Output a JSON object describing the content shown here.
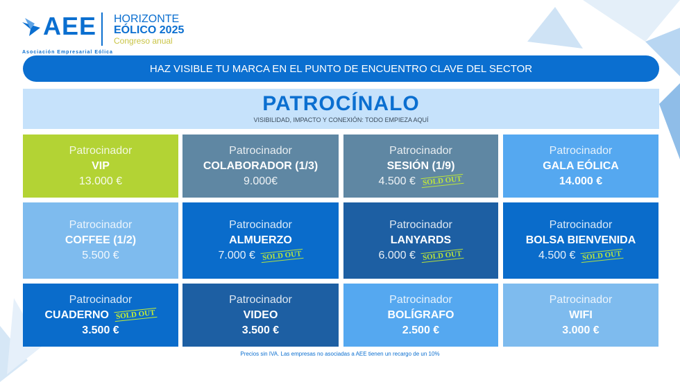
{
  "logo": {
    "name": "AEE",
    "subtitle": "Asociación Empresarial Eólica"
  },
  "event": {
    "line1": "HORIZONTE",
    "line2": "EÓLICO 2025",
    "line3": "Congreso anual"
  },
  "banner": "HAZ VISIBLE TU MARCA EN EL PUNTO DE ENCUENTRO CLAVE DEL SECTOR",
  "header": {
    "title": "PATROCÍNALO",
    "subtitle": "VISIBILIDAD, IMPACTO Y CONEXIÓN: TODO EMPIEZA AQUÍ"
  },
  "sold_out_label": "SOLD OUT",
  "cards": [
    {
      "label": "Patrocinador",
      "name": "VIP",
      "price": "13.000 €",
      "sold_out": false,
      "color": "#b3d334",
      "bold_price": false
    },
    {
      "label": "Patrocinador",
      "name": "COLABORADOR (1/3)",
      "price": "9.000€",
      "sold_out": false,
      "color": "#5f87a3",
      "bold_price": false
    },
    {
      "label": "Patrocinador",
      "name": "SESIÓN (1/9)",
      "price": "4.500 €",
      "sold_out": true,
      "color": "#5f87a3",
      "bold_price": false
    },
    {
      "label": "Patrocinador",
      "name": "GALA EÓLICA",
      "price": "14.000 €",
      "sold_out": false,
      "color": "#55a8f0",
      "bold_price": true
    },
    {
      "label": "Patrocinador",
      "name": "COFFEE (1/2)",
      "price": "5.500 €",
      "sold_out": false,
      "color": "#7ebbee",
      "bold_price": false
    },
    {
      "label": "Patrocinador",
      "name": "ALMUERZO",
      "price": "7.000 €",
      "sold_out": true,
      "color": "#0a6ccb",
      "bold_price": false
    },
    {
      "label": "Patrocinador",
      "name": "LANYARDS",
      "price": "6.000 €",
      "sold_out": true,
      "color": "#1d5fa3",
      "bold_price": false
    },
    {
      "label": "Patrocinador",
      "name": "BOLSA BIENVENIDA",
      "price": "4.500 €",
      "sold_out": true,
      "color": "#0a6ccb",
      "bold_price": false
    },
    {
      "label": "Patrocinador",
      "name": "CUADERNO",
      "price": "3.500 €",
      "sold_out": true,
      "color": "#0a6ccb",
      "bold_price": true
    },
    {
      "label": "Patrocinador",
      "name": "VIDEO",
      "price": "3.500 €",
      "sold_out": false,
      "color": "#1d5fa3",
      "bold_price": true
    },
    {
      "label": "Patrocinador",
      "name": "BOLÍGRAFO",
      "price": "2.500 €",
      "sold_out": false,
      "color": "#55a8f0",
      "bold_price": true
    },
    {
      "label": "Patrocinador",
      "name": "WIFI",
      "price": "3.000 €",
      "sold_out": false,
      "color": "#7ebbee",
      "bold_price": true
    }
  ],
  "footer": "Precios sin IVA. Las empresas no asociadas a AEE tienen un recargo de un 10%"
}
